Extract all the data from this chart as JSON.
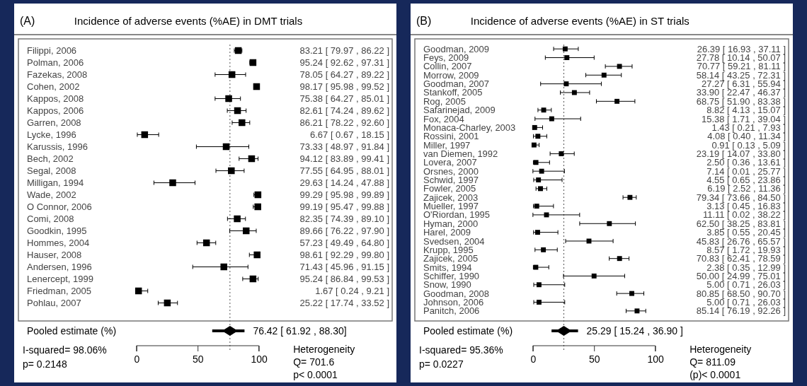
{
  "chart_data": [
    {
      "type": "scatter",
      "orientation": "horizontal",
      "title": "Incidence of adverse events (%AE) in DMT trials",
      "annotations": [
        "(A)",
        "I-squared= 98.06%",
        "p= 0.2148",
        "Heterogeneity",
        "Q= 701.6",
        "p< 0.0001"
      ],
      "categories": [
        "Filippi, 2006",
        "Polman, 2006",
        "Fazekas, 2008",
        "Cohen, 2002",
        "Kappos, 2008",
        "Kappos, 2006",
        "Garren, 2008",
        "Lycke, 1996",
        "Karussis, 1996",
        "Bech, 2002",
        "Segal, 2008",
        "Milligan, 1994",
        "Wade, 2002",
        "O Connor, 2006",
        "Comi, 2008",
        "Goodkin, 1995",
        "Hommes, 2004",
        "Hauser, 2008",
        "Andersen, 1996",
        "Lenercept, 1999",
        "Friedman, 2005",
        "Pohlau, 2007",
        "Pooled estimate (%)"
      ],
      "xlim": [
        0,
        100
      ],
      "xticks": [
        0,
        50,
        100
      ],
      "ref_lines": [
        {
          "axis": "x",
          "value": 76.42,
          "line_style": "dotted"
        }
      ],
      "series": [
        {
          "color": "#000000",
          "marker": "square",
          "values": [
            83.21,
            95.24,
            78.05,
            98.17,
            75.38,
            82.61,
            86.21,
            6.67,
            73.33,
            94.12,
            77.55,
            29.63,
            99.29,
            99.19,
            82.35,
            89.66,
            57.23,
            98.61,
            71.43,
            95.24,
            1.67,
            25.22,
            null
          ],
          "errors": [
            [
              79.97,
              86.22
            ],
            [
              92.62,
              97.31
            ],
            [
              64.27,
              89.22
            ],
            [
              95.98,
              99.52
            ],
            [
              64.27,
              85.01
            ],
            [
              74.24,
              89.62
            ],
            [
              78.22,
              92.6
            ],
            [
              0.67,
              18.15
            ],
            [
              48.97,
              91.84
            ],
            [
              83.89,
              99.41
            ],
            [
              64.95,
              88.01
            ],
            [
              14.24,
              47.88
            ],
            [
              95.98,
              99.89
            ],
            [
              95.47,
              99.88
            ],
            [
              74.39,
              89.1
            ],
            [
              76.22,
              97.9
            ],
            [
              49.49,
              64.8
            ],
            [
              92.29,
              99.8
            ],
            [
              45.96,
              91.15
            ],
            [
              86.84,
              99.53
            ],
            [
              0.24,
              9.21
            ],
            [
              17.74,
              33.52
            ],
            null
          ],
          "value_labels": [
            "83.21 [ 79.97 , 86.22 ]",
            "95.24 [ 92.62 , 97.31 ]",
            "78.05 [ 64.27 , 89.22 ]",
            "98.17 [ 95.98 , 99.52 ]",
            "75.38 [ 64.27 , 85.01 ]",
            "82.61 [ 74.24 , 89.62 ]",
            "86.21 [ 78.22 , 92.60 ]",
            "6.67 [ 0.67 , 18.15 ]",
            "73.33 [ 48.97 , 91.84 ]",
            "94.12 [ 83.89 , 99.41 ]",
            "77.55 [ 64.95 , 88.01 ]",
            "29.63 [ 14.24 , 47.88 ]",
            "99.29 [ 95.98 , 99.89 ]",
            "99.19 [ 95.47 , 99.88 ]",
            "82.35 [ 74.39 , 89.10 ]",
            "89.66 [ 76.22 , 97.90 ]",
            "57.23 [ 49.49 , 64.80 ]",
            "98.61 [ 92.29 , 99.80 ]",
            "71.43 [ 45.96 , 91.15 ]",
            "95.24 [ 86.84 , 99.53 ]",
            "1.67 [ 0.24 , 9.21 ]",
            "25.22 [ 17.74 , 33.52 ]",
            null
          ]
        },
        {
          "color": "#000000",
          "marker": "diamond",
          "values": [
            null,
            null,
            null,
            null,
            null,
            null,
            null,
            null,
            null,
            null,
            null,
            null,
            null,
            null,
            null,
            null,
            null,
            null,
            null,
            null,
            null,
            null,
            76.42
          ],
          "errors": [
            null,
            null,
            null,
            null,
            null,
            null,
            null,
            null,
            null,
            null,
            null,
            null,
            null,
            null,
            null,
            null,
            null,
            null,
            null,
            null,
            null,
            null,
            [
              61.92,
              88.3
            ]
          ],
          "value_labels": [
            null,
            null,
            null,
            null,
            null,
            null,
            null,
            null,
            null,
            null,
            null,
            null,
            null,
            null,
            null,
            null,
            null,
            null,
            null,
            null,
            null,
            null,
            "76.42 [ 61.92 , 88.30]"
          ]
        }
      ]
    },
    {
      "type": "scatter",
      "orientation": "horizontal",
      "title": "Incidence of adverse events (%AE) in ST trials",
      "annotations": [
        "(B)",
        "I-squared= 95.36%",
        "p= 0.0227",
        "Heterogeneity",
        "Q= 811.09",
        "(p)< 0.0001"
      ],
      "categories": [
        "Goodman, 2009",
        "Feys, 2009",
        "Collin, 2007",
        "Morrow, 2009",
        "Goodman, 2007",
        "Stankoff, 2005",
        "Rog, 2005",
        "Safarinejad, 2009",
        "Fox, 2004",
        "Monaca-Charley, 2003",
        "Rossini, 2001",
        "Miller, 1997",
        "van Diemen, 1992",
        "Lovera, 2007",
        "Orsnes, 2000",
        "Schwid, 1997",
        "Fowler, 2005",
        "Zajicek, 2003",
        "Mueller, 1997",
        "O'Riordan, 1995",
        "Hyman, 2000",
        "Harel, 2009",
        "Svedsen, 2004",
        "Krupp, 1995",
        "Zajicek, 2005",
        "Smits, 1994",
        "Schiffer, 1990",
        "Snow, 1990",
        "Goodman, 2008",
        "Johnson, 2006",
        "Panitch, 2006",
        "Pooled estimate (%)"
      ],
      "xlim": [
        0,
        100
      ],
      "xticks": [
        0,
        50,
        100
      ],
      "ref_lines": [
        {
          "axis": "x",
          "value": 25.29,
          "line_style": "dotted"
        }
      ],
      "series": [
        {
          "color": "#000000",
          "marker": "square",
          "values": [
            26.39,
            27.78,
            70.77,
            58.14,
            27.27,
            33.9,
            68.75,
            8.82,
            15.38,
            1.43,
            4.08,
            0.91,
            23.19,
            2.5,
            7.14,
            4.55,
            6.19,
            79.34,
            3.13,
            11.11,
            62.5,
            3.85,
            45.83,
            8.57,
            70.83,
            2.38,
            50.0,
            5.0,
            80.85,
            5.0,
            85.14,
            null
          ],
          "errors": [
            [
              16.93,
              37.11
            ],
            [
              10.14,
              50.07
            ],
            [
              59.21,
              81.11
            ],
            [
              43.25,
              72.31
            ],
            [
              6.31,
              55.94
            ],
            [
              22.47,
              46.37
            ],
            [
              51.9,
              83.38
            ],
            [
              4.13,
              15.07
            ],
            [
              1.71,
              39.04
            ],
            [
              0.21,
              7.93
            ],
            [
              0.4,
              11.34
            ],
            [
              0.13,
              5.09
            ],
            [
              14.07,
              33.8
            ],
            [
              0.36,
              13.61
            ],
            [
              0.01,
              25.77
            ],
            [
              0.65,
              23.86
            ],
            [
              2.52,
              11.36
            ],
            [
              73.66,
              84.5
            ],
            [
              0.45,
              16.83
            ],
            [
              0.02,
              38.22
            ],
            [
              38.25,
              83.81
            ],
            [
              0.55,
              20.45
            ],
            [
              26.76,
              65.57
            ],
            [
              1.72,
              19.93
            ],
            [
              62.41,
              78.59
            ],
            [
              0.35,
              12.99
            ],
            [
              24.99,
              75.01
            ],
            [
              0.71,
              26.03
            ],
            [
              68.5,
              90.7
            ],
            [
              0.71,
              26.03
            ],
            [
              76.19,
              92.26
            ],
            null
          ],
          "value_labels": [
            "26.39 [ 16.93 , 37.11 ]",
            "27.78 [ 10.14 , 50.07 ]",
            "70.77 [ 59.21 , 81.11 ]",
            "58.14 [ 43.25 , 72.31 ]",
            "27.27 [ 6.31 , 55.94 ]",
            "33.90 [ 22.47 , 46.37 ]",
            "68.75 [ 51.90 , 83.38 ]",
            "8.82 [ 4.13 , 15.07 ]",
            "15.38 [ 1.71 , 39.04 ]",
            "1.43 [ 0.21 , 7.93 ]",
            "4.08 [ 0.40 , 11.34 ]",
            "0.91 [ 0.13 , 5.09 ]",
            "23.19 [ 14.07 , 33.80 ]",
            "2.50 [ 0.36 , 13.61 ]",
            "7.14 [ 0.01 , 25.77 ]",
            "4.55 [ 0.65 , 23.86 ]",
            "6.19 [ 2.52 , 11.36 ]",
            "79.34 [ 73.66 , 84.50 ]",
            "3.13 [ 0.45 , 16.83 ]",
            "11.11 [ 0.02 , 38.22 ]",
            "62.50 [ 38.25 , 83.81 ]",
            "3.85 [ 0.55 , 20.45 ]",
            "45.83 [ 26.76 , 65.57 ]",
            "8.57 [ 1.72 , 19.93 ]",
            "70.83 [ 62.41 , 78.59 ]",
            "2.38 [ 0.35 , 12.99 ]",
            "50.00 [ 24.99 , 75.01 ]",
            "5.00 [ 0.71 , 26.03 ]",
            "80.85 [ 68.50 , 90.70 ]",
            "5.00 [ 0.71 , 26.03 ]",
            "85.14 [ 76.19 , 92.26 ]",
            null
          ]
        },
        {
          "color": "#000000",
          "marker": "diamond",
          "values": [
            null,
            null,
            null,
            null,
            null,
            null,
            null,
            null,
            null,
            null,
            null,
            null,
            null,
            null,
            null,
            null,
            null,
            null,
            null,
            null,
            null,
            null,
            null,
            null,
            null,
            null,
            null,
            null,
            null,
            null,
            null,
            25.29
          ],
          "errors": [
            null,
            null,
            null,
            null,
            null,
            null,
            null,
            null,
            null,
            null,
            null,
            null,
            null,
            null,
            null,
            null,
            null,
            null,
            null,
            null,
            null,
            null,
            null,
            null,
            null,
            null,
            null,
            null,
            null,
            null,
            null,
            [
              15.24,
              36.9
            ]
          ],
          "value_labels": [
            null,
            null,
            null,
            null,
            null,
            null,
            null,
            null,
            null,
            null,
            null,
            null,
            null,
            null,
            null,
            null,
            null,
            null,
            null,
            null,
            null,
            null,
            null,
            null,
            null,
            null,
            null,
            null,
            null,
            null,
            null,
            "25.29 [ 15.24 , 36.90 ]"
          ]
        }
      ]
    }
  ]
}
